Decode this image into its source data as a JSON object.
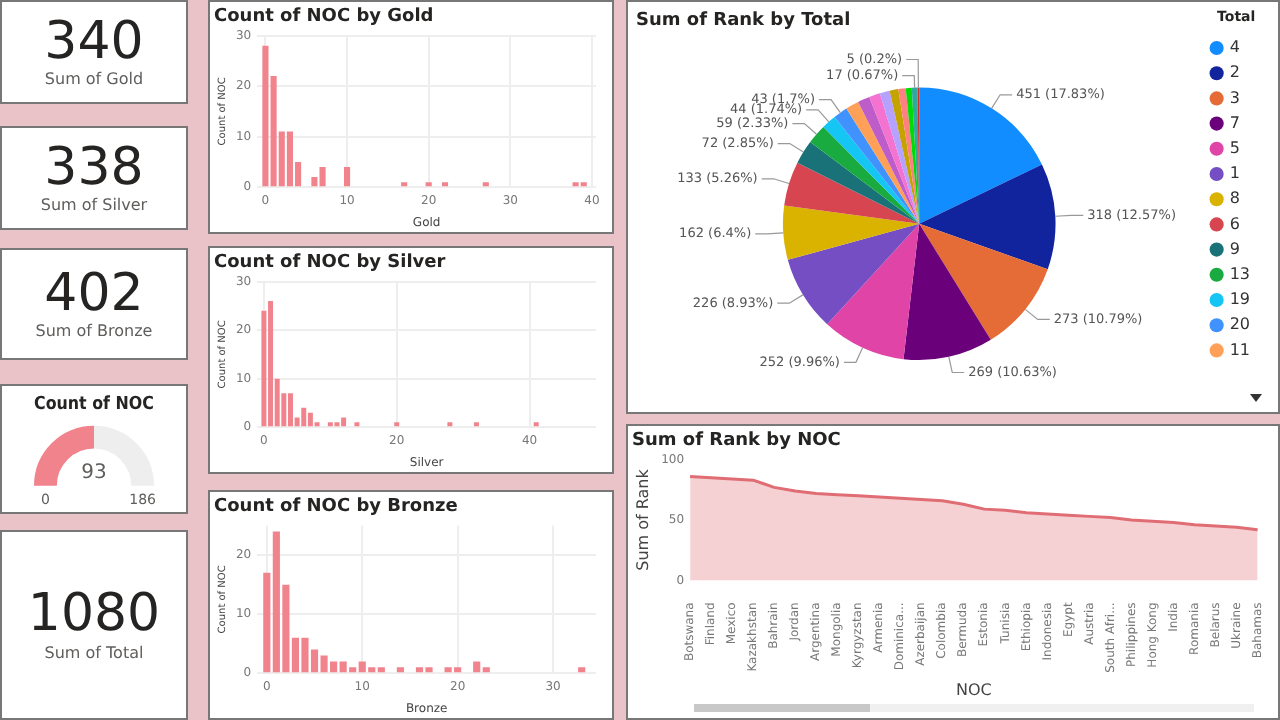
{
  "chart_data": [
    {
      "type": "other",
      "annotations": [
        "340",
        "Sum of Gold"
      ]
    },
    {
      "type": "other",
      "annotations": [
        "338",
        "Sum of Silver"
      ]
    },
    {
      "type": "other",
      "annotations": [
        "402",
        "Sum of Bronze"
      ]
    },
    {
      "type": "donut",
      "title": "Count of NOC",
      "categories": [
        null,
        null
      ],
      "values": [
        50,
        50
      ],
      "colors": [
        "#f1838d",
        "#eeeeee"
      ],
      "annotations": [
        "93",
        "0",
        "186"
      ]
    },
    {
      "type": "other",
      "annotations": [
        "1080",
        "Sum of Total"
      ]
    },
    {
      "type": "bar",
      "title": "Count of NOC by Gold",
      "xlabel": "Gold",
      "ylabel": "Count of NOC",
      "color": "#f1838d",
      "x": [
        0,
        1,
        2,
        3,
        4,
        6,
        7,
        10,
        17,
        20,
        22,
        27,
        38,
        39
      ],
      "values": [
        28,
        22,
        11,
        11,
        5,
        2,
        4,
        4,
        1,
        1,
        1,
        1,
        1,
        1
      ],
      "xlim": [
        -1,
        40.5
      ],
      "xticks": [
        0,
        10,
        20,
        30,
        40
      ],
      "ylim": [
        0,
        30
      ],
      "yticks": [
        0,
        10,
        20,
        30
      ],
      "grid": true
    },
    {
      "type": "bar",
      "title": "Count of NOC by Silver",
      "xlabel": "Silver",
      "ylabel": "Count of NOC",
      "color": "#f1838d",
      "x": [
        0,
        1,
        2,
        3,
        4,
        5,
        6,
        7,
        8,
        10,
        11,
        12,
        14,
        20,
        28,
        32,
        41
      ],
      "values": [
        24,
        26,
        10,
        7,
        7,
        2,
        4,
        3,
        1,
        1,
        1,
        2,
        1,
        1,
        1,
        1,
        1
      ],
      "xlim": [
        -1,
        50
      ],
      "xticks": [
        0,
        20,
        40
      ],
      "ylim": [
        0,
        30
      ],
      "yticks": [
        0,
        10,
        20,
        30
      ],
      "grid": true
    },
    {
      "type": "bar",
      "title": "Count of NOC by Bronze",
      "xlabel": "Bronze",
      "ylabel": "Count of NOC",
      "color": "#f1838d",
      "x": [
        0,
        1,
        2,
        3,
        4,
        5,
        6,
        7,
        8,
        9,
        10,
        11,
        12,
        14,
        16,
        17,
        19,
        20,
        22,
        23,
        33
      ],
      "values": [
        17,
        24,
        15,
        6,
        6,
        4,
        3,
        2,
        2,
        1,
        2,
        1,
        1,
        1,
        1,
        1,
        1,
        1,
        2,
        1,
        1
      ],
      "xlim": [
        -1,
        34.5
      ],
      "xticks": [
        0,
        10,
        20,
        30
      ],
      "ylim": [
        0,
        25
      ],
      "yticks": [
        0,
        10,
        20
      ],
      "grid": true
    },
    {
      "type": "pie",
      "title": "Sum of Rank by Total",
      "legend_title": "Total",
      "legend": "right",
      "categories": [
        "4",
        "2",
        "3",
        "7",
        "5",
        "1",
        "8",
        "6",
        "9",
        "13",
        "19",
        "20",
        "11",
        null,
        null,
        null,
        null,
        null,
        null,
        null,
        null
      ],
      "values": [
        451,
        318,
        273,
        269,
        252,
        226,
        162,
        133,
        72,
        59,
        44,
        43,
        40,
        36,
        33,
        30,
        26,
        22,
        18,
        17,
        5
      ],
      "colors": [
        "#118dff",
        "#12239e",
        "#e66c37",
        "#6b007b",
        "#e044a7",
        "#744ec2",
        "#d9b300",
        "#d64550",
        "#197278",
        "#1aab40",
        "#15c6f4",
        "#4092ff",
        "#ffa058",
        "#be5dc9",
        "#f472d0",
        "#b5a1ff",
        "#c4a200",
        "#ff8080",
        "#00db05",
        "#2fa8a0",
        "#d82c20"
      ],
      "value_labels": [
        "451 (17.83%)",
        "318 (12.57%)",
        "273 (10.79%)",
        "269 (10.63%)",
        "252 (9.96%)",
        "226 (8.93%)",
        "162 (6.4%)",
        "133 (5.26%)",
        "72 (2.85%)",
        "59 (2.33%)",
        "44 (1.74%)",
        "43 (1.7%)",
        null,
        null,
        null,
        null,
        null,
        null,
        null,
        "17 (0.67%)",
        "5 (0.2%)"
      ]
    },
    {
      "type": "area",
      "title": "Sum of Rank by NOC",
      "xlabel": "NOC",
      "ylabel": "Sum of Rank",
      "color": "#e06c74",
      "categories": [
        "Botswana",
        "Finland",
        "Mexico",
        "Kazakhstan",
        "Bahrain",
        "Jordan",
        "Argentina",
        "Mongolia",
        "Kyrgyzstan",
        "Armenia",
        "Dominica...",
        "Azerbaijan",
        "Colombia",
        "Bermuda",
        "Estonia",
        "Tunisia",
        "Ethiopia",
        "Indonesia",
        "Egypt",
        "Austria",
        "South Afri...",
        "Philippines",
        "Hong Kong",
        "India",
        "Romania",
        "Belarus",
        "Ukraine",
        "Bahamas"
      ],
      "values": [
        86,
        85,
        84,
        83,
        77,
        74,
        72,
        71,
        70,
        69,
        68,
        67,
        66,
        63,
        59,
        58,
        56,
        55,
        54,
        53,
        52,
        50,
        49,
        48,
        46,
        45,
        44,
        42
      ],
      "ylim": [
        0,
        100
      ],
      "yticks": [
        0,
        50,
        100
      ]
    }
  ]
}
